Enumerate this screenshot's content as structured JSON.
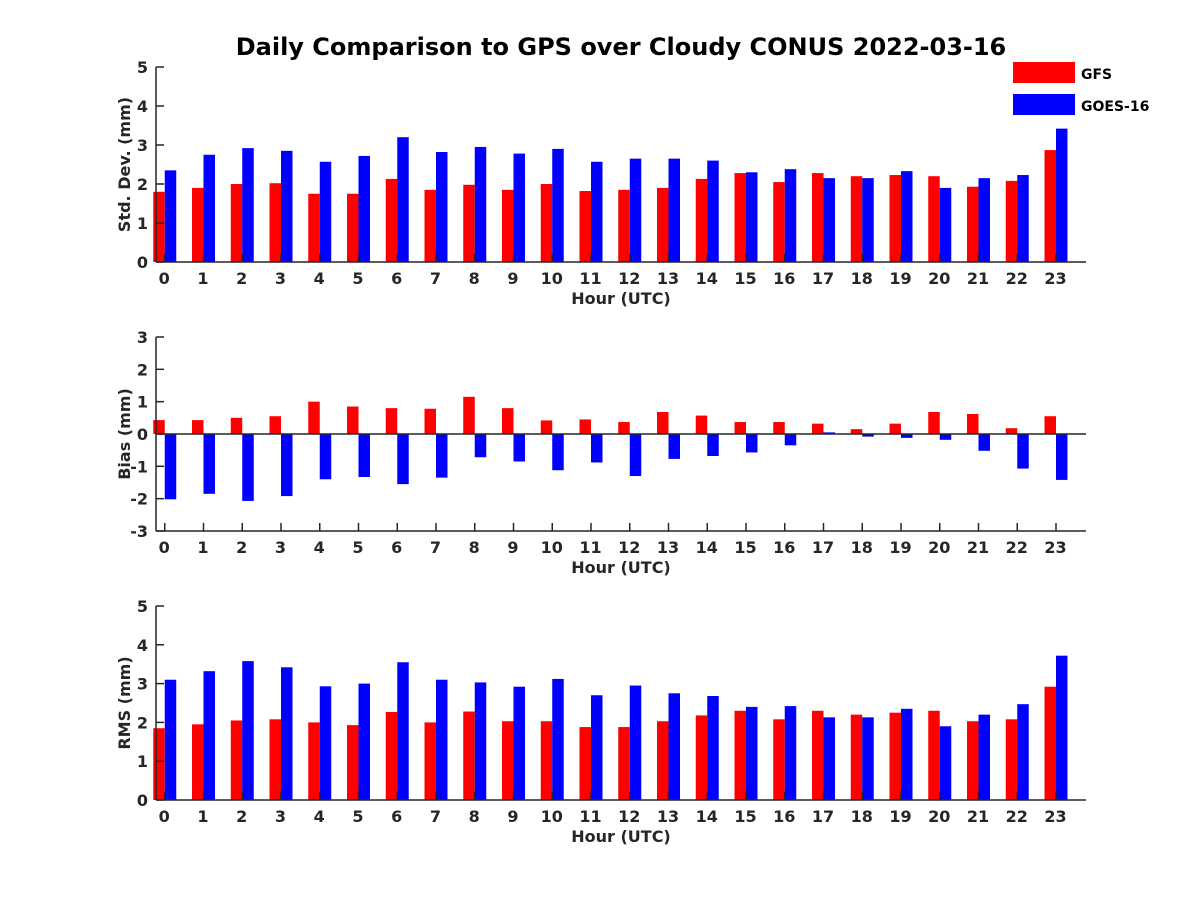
{
  "figure": {
    "title": "Daily Comparison to GPS over Cloudy CONUS 2022-03-16"
  },
  "legend": {
    "placement": "top-right",
    "entries": [
      {
        "label": "GFS",
        "color": "#ff0000"
      },
      {
        "label": "GOES-16",
        "color": "#0000ff"
      }
    ]
  },
  "chart_data": [
    {
      "type": "bar",
      "xlabel": "Hour (UTC)",
      "ylabel": "Std. Dev. (mm)",
      "ylim": [
        0,
        5
      ],
      "yticks": [
        0,
        1,
        2,
        3,
        4,
        5
      ],
      "categories": [
        "0",
        "1",
        "2",
        "3",
        "4",
        "5",
        "6",
        "7",
        "8",
        "9",
        "10",
        "11",
        "12",
        "13",
        "14",
        "15",
        "16",
        "17",
        "18",
        "19",
        "20",
        "21",
        "22",
        "23"
      ],
      "series": [
        {
          "name": "GFS",
          "color": "#ff0000",
          "values": [
            1.8,
            1.9,
            2.0,
            2.02,
            1.75,
            1.75,
            2.13,
            1.85,
            1.98,
            1.85,
            2.0,
            1.82,
            1.85,
            1.9,
            2.13,
            2.28,
            2.05,
            2.28,
            2.2,
            2.23,
            2.2,
            1.93,
            2.08,
            2.87
          ]
        },
        {
          "name": "GOES-16",
          "color": "#0000ff",
          "values": [
            2.35,
            2.75,
            2.92,
            2.85,
            2.57,
            2.72,
            3.2,
            2.82,
            2.95,
            2.78,
            2.9,
            2.57,
            2.65,
            2.65,
            2.6,
            2.3,
            2.38,
            2.15,
            2.15,
            2.33,
            1.9,
            2.15,
            2.23,
            3.42
          ]
        }
      ]
    },
    {
      "type": "bar",
      "xlabel": "Hour (UTC)",
      "ylabel": "Bias (mm)",
      "ylim": [
        -3,
        3
      ],
      "yticks": [
        -3,
        -2,
        -1,
        0,
        1,
        2,
        3
      ],
      "categories": [
        "0",
        "1",
        "2",
        "3",
        "4",
        "5",
        "6",
        "7",
        "8",
        "9",
        "10",
        "11",
        "12",
        "13",
        "14",
        "15",
        "16",
        "17",
        "18",
        "19",
        "20",
        "21",
        "22",
        "23"
      ],
      "series": [
        {
          "name": "GFS",
          "color": "#ff0000",
          "values": [
            0.43,
            0.43,
            0.5,
            0.55,
            1.0,
            0.85,
            0.8,
            0.78,
            1.15,
            0.8,
            0.42,
            0.45,
            0.37,
            0.68,
            0.57,
            0.37,
            0.37,
            0.32,
            0.15,
            0.32,
            0.68,
            0.62,
            0.18,
            0.55
          ]
        },
        {
          "name": "GOES-16",
          "color": "#0000ff",
          "values": [
            -2.02,
            -1.85,
            -2.07,
            -1.92,
            -1.4,
            -1.33,
            -1.55,
            -1.35,
            -0.72,
            -0.85,
            -1.12,
            -0.88,
            -1.3,
            -0.77,
            -0.68,
            -0.57,
            -0.35,
            0.05,
            -0.08,
            -0.12,
            -0.18,
            -0.52,
            -1.07,
            -1.42
          ]
        }
      ]
    },
    {
      "type": "bar",
      "xlabel": "Hour (UTC)",
      "ylabel": "RMS (mm)",
      "ylim": [
        0,
        5
      ],
      "yticks": [
        0,
        1,
        2,
        3,
        4,
        5
      ],
      "categories": [
        "0",
        "1",
        "2",
        "3",
        "4",
        "5",
        "6",
        "7",
        "8",
        "9",
        "10",
        "11",
        "12",
        "13",
        "14",
        "15",
        "16",
        "17",
        "18",
        "19",
        "20",
        "21",
        "22",
        "23"
      ],
      "series": [
        {
          "name": "GFS",
          "color": "#ff0000",
          "values": [
            1.85,
            1.95,
            2.05,
            2.08,
            2.0,
            1.93,
            2.27,
            2.0,
            2.28,
            2.03,
            2.03,
            1.88,
            1.88,
            2.03,
            2.18,
            2.3,
            2.08,
            2.3,
            2.2,
            2.25,
            2.3,
            2.03,
            2.08,
            2.92
          ]
        },
        {
          "name": "GOES-16",
          "color": "#0000ff",
          "values": [
            3.1,
            3.32,
            3.58,
            3.42,
            2.93,
            3.0,
            3.55,
            3.1,
            3.03,
            2.92,
            3.12,
            2.7,
            2.95,
            2.75,
            2.68,
            2.4,
            2.42,
            2.13,
            2.13,
            2.35,
            1.9,
            2.2,
            2.47,
            3.72
          ]
        }
      ]
    }
  ]
}
